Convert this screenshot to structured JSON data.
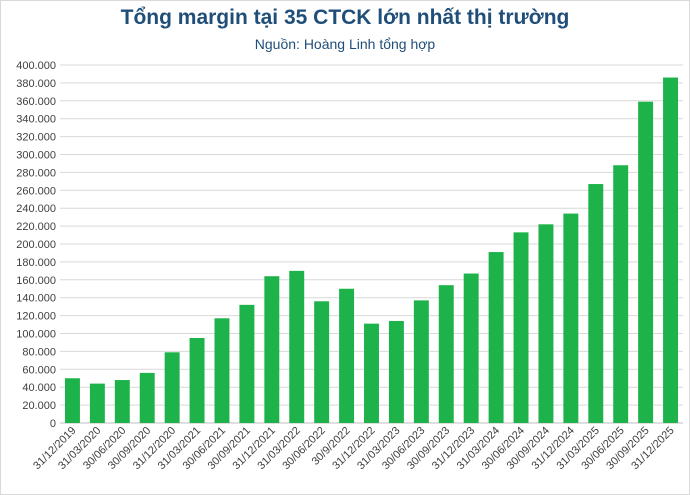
{
  "chart_data": {
    "type": "bar",
    "title": "Tổng margin tại 35 CTCK lớn nhất thị trường",
    "subtitle": "Nguồn: Hoàng Linh tổng hợp",
    "categories": [
      "31/12/2019",
      "31/03/2020",
      "30/06/2020",
      "30/09/2020",
      "31/12/2020",
      "31/03/2021",
      "30/06/2021",
      "30/09/2021",
      "31/12/2021",
      "31/03/2022",
      "30/06/2022",
      "30/9/2022",
      "31/12/2022",
      "31/03/2023",
      "30/06/2023",
      "30/09/2023",
      "31/12/2023",
      "31/03/2024",
      "30/06/2024",
      "30/09/2024",
      "31/12/2024",
      "31/03/2025",
      "30/06/2025",
      "30/09/2025",
      "31/12/2025"
    ],
    "values": [
      50000,
      44000,
      48000,
      56000,
      79000,
      95000,
      117000,
      132000,
      164000,
      170000,
      136000,
      150000,
      111000,
      114000,
      137000,
      154000,
      167000,
      191000,
      213000,
      222000,
      234000,
      267000,
      288000,
      359000,
      386000
    ],
    "ylim": [
      0,
      400000
    ],
    "ytick_step": 20000,
    "ytick_labels": [
      "0",
      "20.000",
      "40.000",
      "60.000",
      "80.000",
      "100.000",
      "120.000",
      "140.000",
      "160.000",
      "180.000",
      "200.000",
      "220.000",
      "240.000",
      "260.000",
      "280.000",
      "300.000",
      "320.000",
      "340.000",
      "360.000",
      "380.000",
      "400.000"
    ],
    "grid": true,
    "legend": "none",
    "colors": {
      "bar": "#1db34a",
      "title": "#1f4e79",
      "grid": "#d9d9d9",
      "axis_text": "#404040"
    }
  }
}
